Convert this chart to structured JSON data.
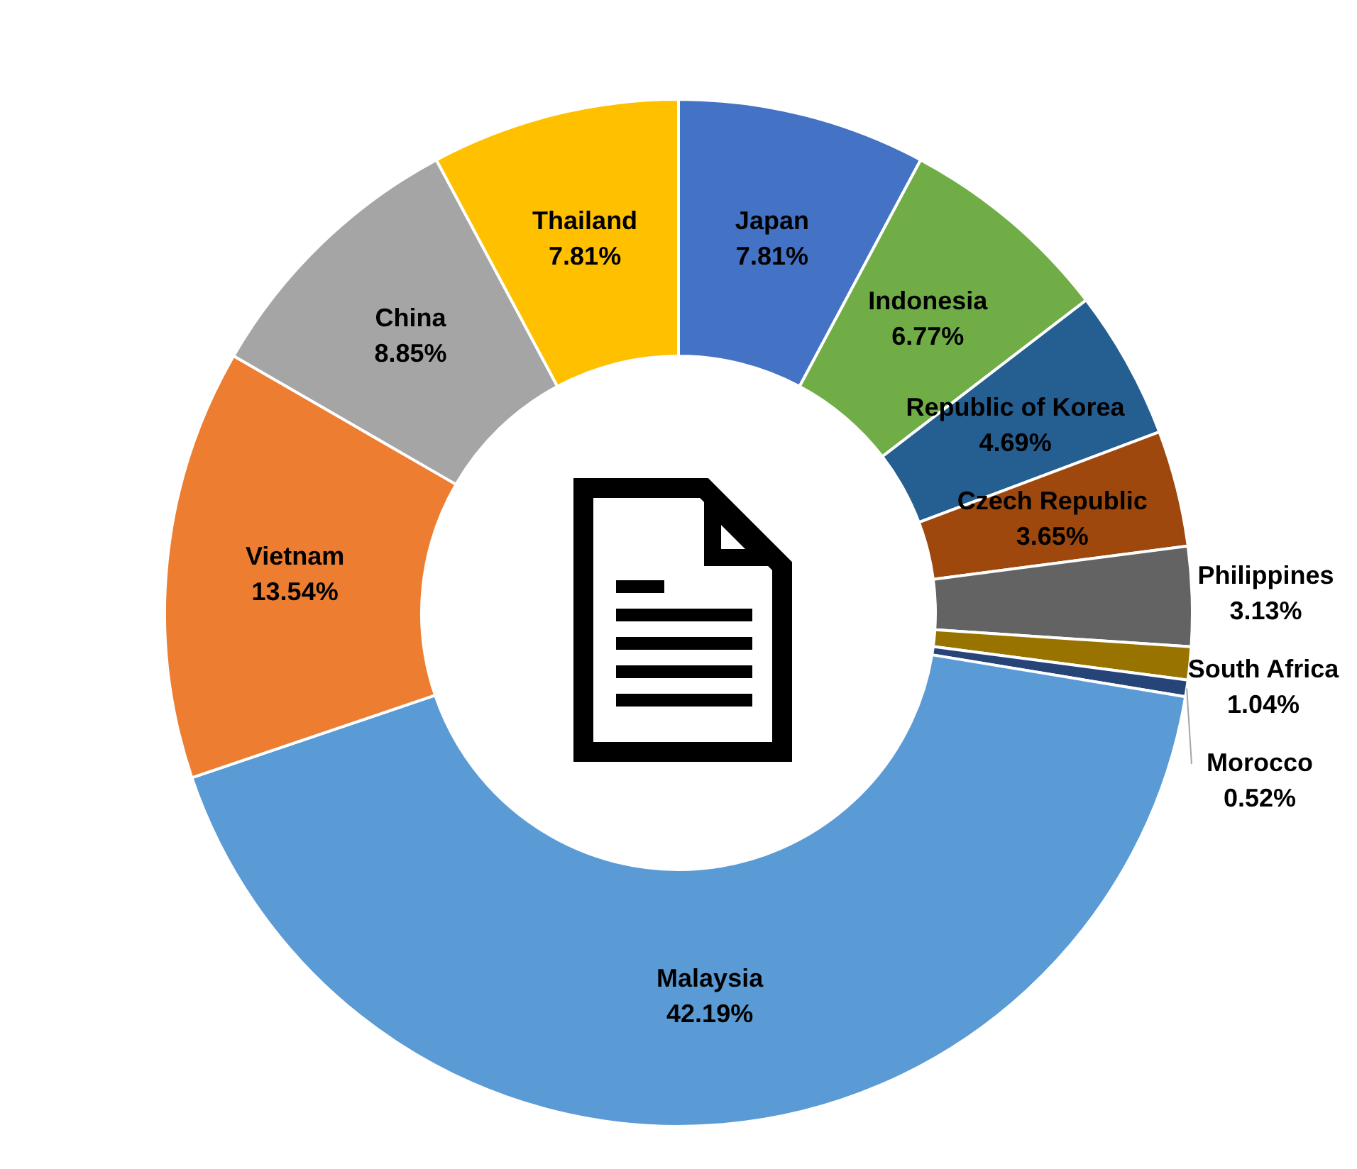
{
  "chart_data": {
    "type": "donut",
    "categories": [
      "Japan",
      "Indonesia",
      "Republic of Korea",
      "Czech Republic",
      "Philippines",
      "South Africa",
      "Morocco",
      "Malaysia",
      "Vietnam",
      "China",
      "Thailand"
    ],
    "values": [
      7.81,
      6.77,
      4.69,
      3.65,
      3.13,
      1.04,
      0.52,
      42.19,
      13.54,
      8.85,
      7.81
    ],
    "value_labels": [
      "7.81%",
      "6.77%",
      "4.69%",
      "3.65%",
      "3.13%",
      "1.04%",
      "0.52%",
      "42.19%",
      "13.54%",
      "8.85%",
      "7.81%"
    ],
    "colors": [
      "#4472c4",
      "#70ad47",
      "#255e91",
      "#9e480e",
      "#636363",
      "#997300",
      "#264478",
      "#5b9bd5",
      "#ed7d31",
      "#a5a5a5",
      "#ffc000"
    ],
    "legend": false
  }
}
